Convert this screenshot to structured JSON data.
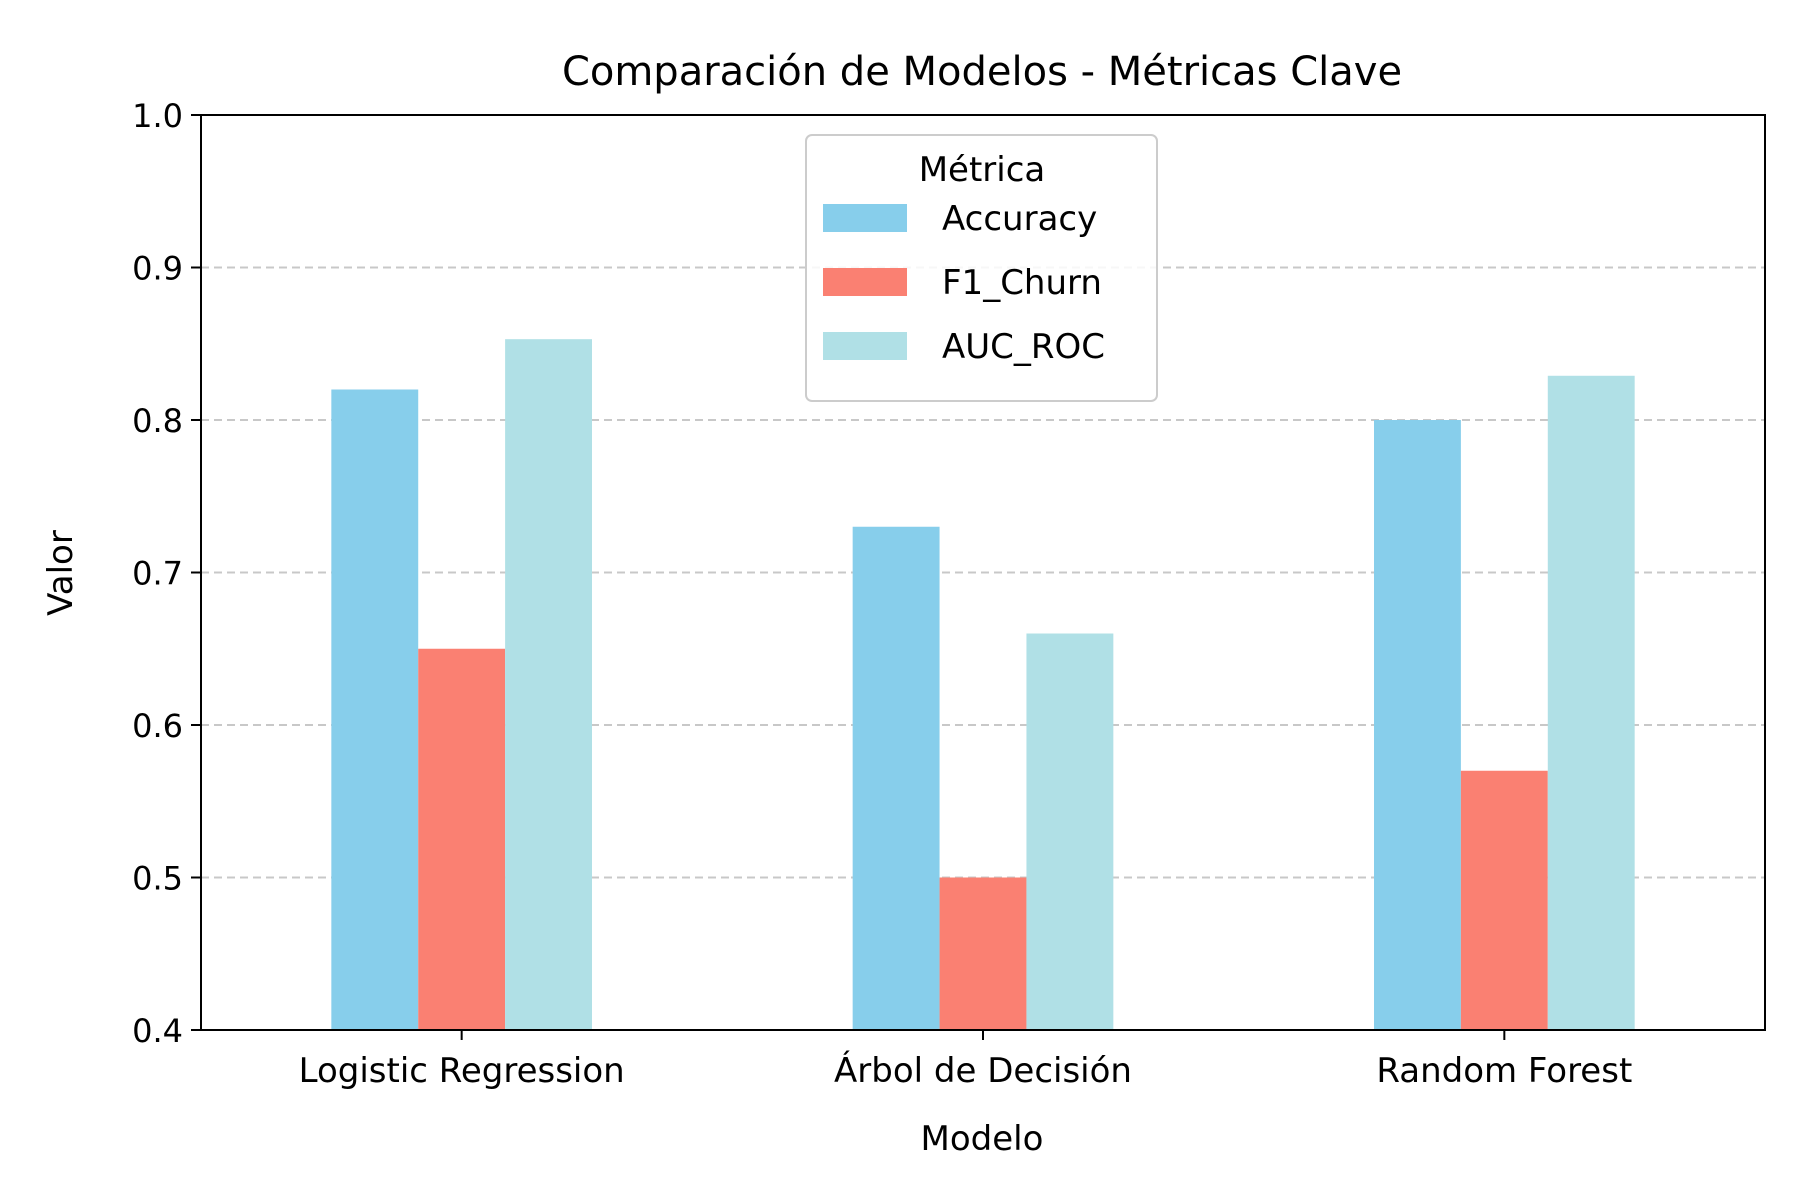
{
  "chart_data": {
    "type": "bar",
    "title": "Comparación de Modelos - Métricas Clave",
    "xlabel": "Modelo",
    "ylabel": "Valor",
    "ylim": [
      0.4,
      1.0
    ],
    "yticks": [
      "0.4",
      "0.5",
      "0.6",
      "0.7",
      "0.8",
      "0.9",
      "1.0"
    ],
    "grid": "y-dashed",
    "categories": [
      "Logistic Regression",
      "Árbol de Decisión",
      "Random Forest"
    ],
    "legend": {
      "title": "Métrica",
      "position": "top-center"
    },
    "series": [
      {
        "name": "Accuracy",
        "color": "#87ceeb",
        "values": [
          0.82,
          0.73,
          0.8
        ]
      },
      {
        "name": "F1_Churn",
        "color": "#fa8072",
        "values": [
          0.65,
          0.5,
          0.57
        ]
      },
      {
        "name": "AUC_ROC",
        "color": "#b0e0e6",
        "values": [
          0.853,
          0.66,
          0.829
        ]
      }
    ]
  }
}
